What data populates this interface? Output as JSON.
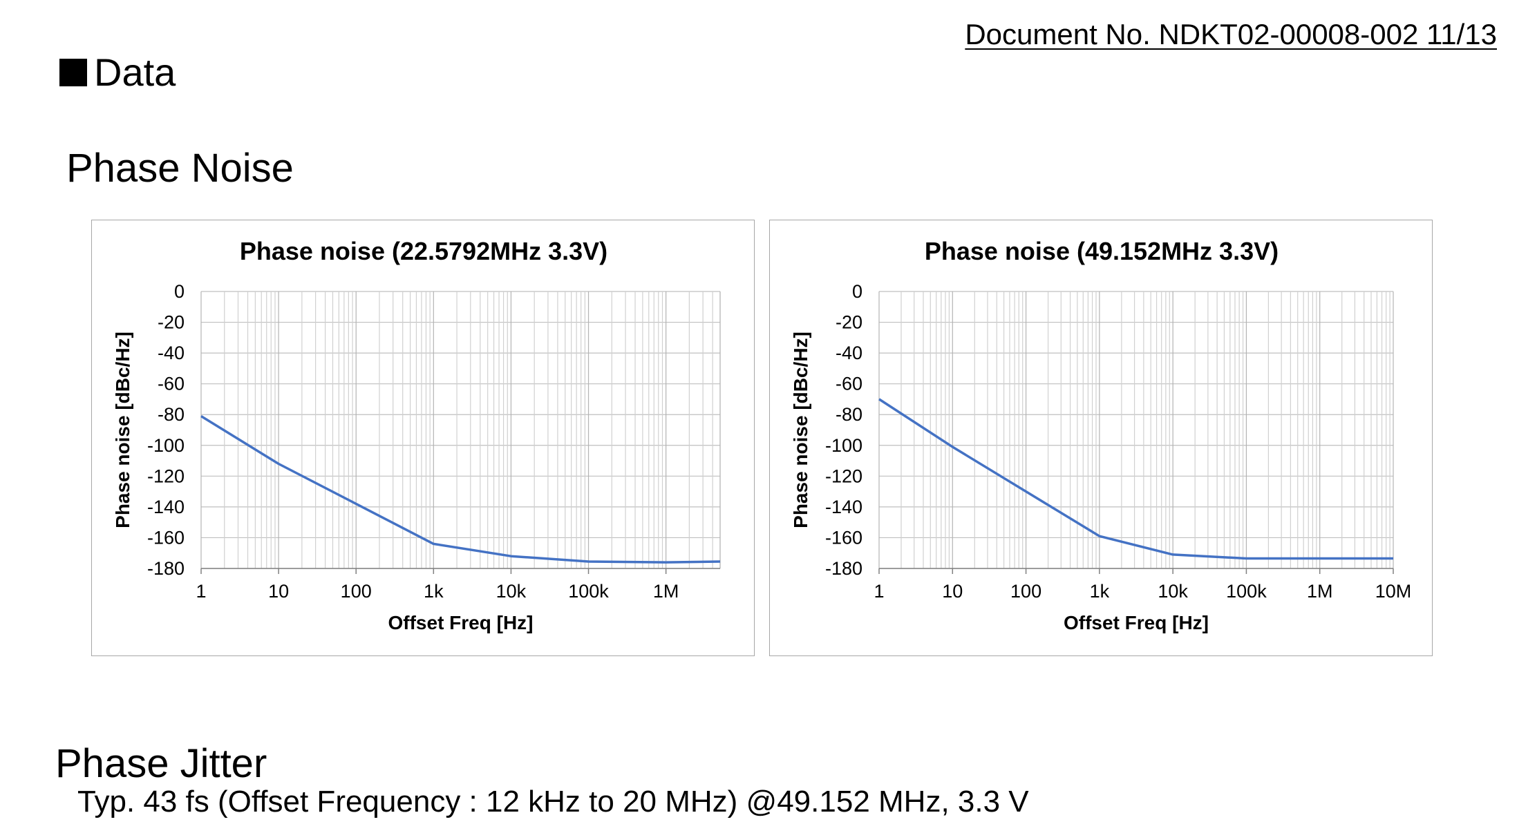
{
  "header": {
    "doc_number": "Document No. NDKT02-00008-002 11/13"
  },
  "section": {
    "title": "Data"
  },
  "phase_noise": {
    "heading": "Phase Noise"
  },
  "phase_jitter": {
    "heading": "Phase Jitter",
    "text": "Typ. 43 fs (Offset Frequency : 12 kHz to 20 MHz) @49.152 MHz, 3.3 V"
  },
  "chart_data": [
    {
      "type": "line",
      "title": "Phase noise (22.5792MHz 3.3V)",
      "xlabel": "Offset Freq [Hz]",
      "ylabel": "Phase noise [dBc/Hz]",
      "xscale": "log",
      "xlim": [
        1,
        5000000
      ],
      "ylim": [
        -180,
        0
      ],
      "xticks": [
        1,
        10,
        100,
        1000,
        10000,
        100000,
        1000000
      ],
      "xtick_labels": [
        "1",
        "10",
        "100",
        "1k",
        "10k",
        "100k",
        "1M"
      ],
      "yticks": [
        0,
        -20,
        -40,
        -60,
        -80,
        -100,
        -120,
        -140,
        -160,
        -180
      ],
      "ytick_labels": [
        "0",
        "-20",
        "-40",
        "-60",
        "-80",
        "-100",
        "-120",
        "-140",
        "-160",
        "-180"
      ],
      "grid": true,
      "line_color": "#4472c4",
      "series": [
        {
          "x": [
            1,
            10,
            100,
            1000,
            10000,
            100000,
            1000000,
            5000000
          ],
          "values": [
            -81,
            -112,
            -138,
            -164,
            -172,
            -175.5,
            -176,
            -175.5
          ]
        }
      ]
    },
    {
      "type": "line",
      "title": "Phase noise (49.152MHz 3.3V)",
      "xlabel": "Offset Freq [Hz]",
      "ylabel": "Phase noise [dBc/Hz]",
      "xscale": "log",
      "xlim": [
        1,
        10000000
      ],
      "ylim": [
        -180,
        0
      ],
      "xticks": [
        1,
        10,
        100,
        1000,
        10000,
        100000,
        1000000,
        10000000
      ],
      "xtick_labels": [
        "1",
        "10",
        "100",
        "1k",
        "10k",
        "100k",
        "1M",
        "10M"
      ],
      "yticks": [
        0,
        -20,
        -40,
        -60,
        -80,
        -100,
        -120,
        -140,
        -160,
        -180
      ],
      "ytick_labels": [
        "0",
        "-20",
        "-40",
        "-60",
        "-80",
        "-100",
        "-120",
        "-140",
        "-160",
        "-180"
      ],
      "grid": true,
      "line_color": "#4472c4",
      "series": [
        {
          "x": [
            1,
            10,
            100,
            1000,
            10000,
            100000,
            1000000,
            10000000
          ],
          "values": [
            -70,
            -101,
            -130,
            -159,
            -171,
            -173.5,
            -173.5,
            -173.5
          ]
        }
      ]
    }
  ]
}
